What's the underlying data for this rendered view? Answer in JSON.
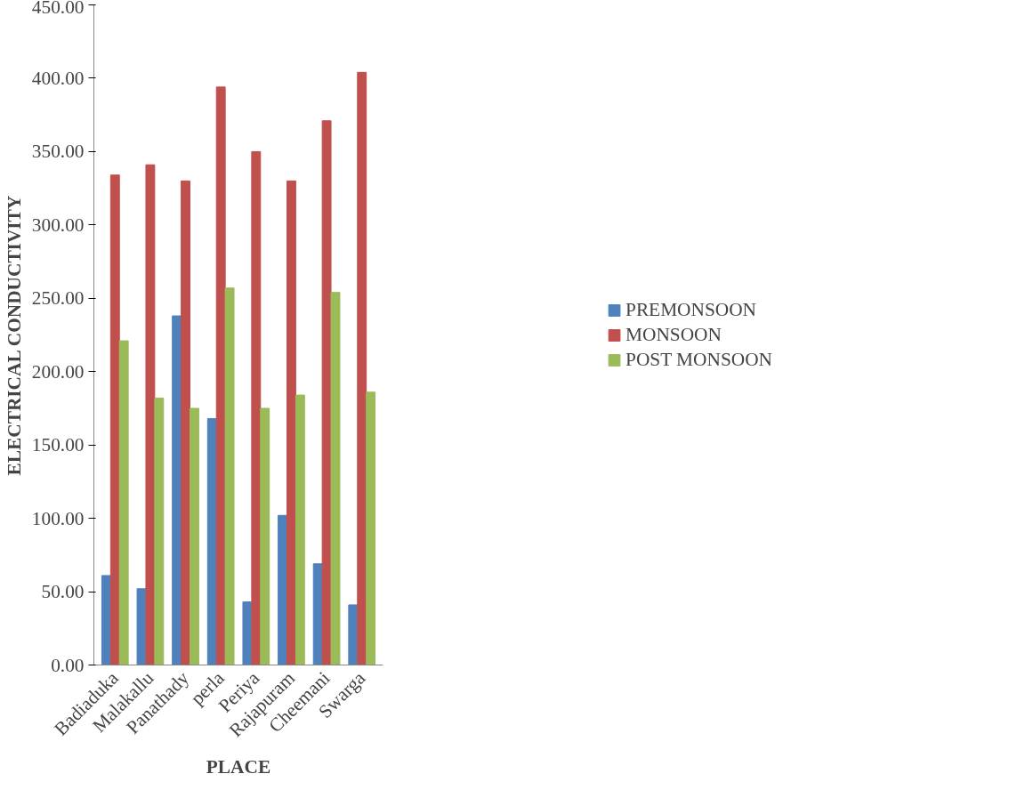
{
  "chart_data": {
    "type": "bar",
    "xlabel": "PLACE",
    "ylabel": "ELECTRICAL CONDUCTIVITY",
    "categories": [
      "Badiaduka",
      "Malakallu",
      "Panathady",
      "perla",
      "Periya",
      "Rajapuram",
      "Cheemani",
      "Swarga"
    ],
    "series": [
      {
        "name": "PREMONSOON",
        "color": "#4f81bd",
        "values": [
          61,
          52,
          238,
          168,
          43,
          102,
          69,
          41
        ]
      },
      {
        "name": "MONSOON",
        "color": "#c0504d",
        "values": [
          334,
          341,
          330,
          394,
          350,
          330,
          371,
          404
        ]
      },
      {
        "name": "POST MONSOON",
        "color": "#9bbb59",
        "values": [
          221,
          182,
          175,
          257,
          175,
          184,
          254,
          186
        ]
      }
    ],
    "ylim": [
      0,
      450
    ],
    "yticks": [
      {
        "value": 0,
        "label": "0.00"
      },
      {
        "value": 50,
        "label": "50.00"
      },
      {
        "value": 100,
        "label": "100.00"
      },
      {
        "value": 150,
        "label": "150.00"
      },
      {
        "value": 200,
        "label": "200.00"
      },
      {
        "value": 250,
        "label": "250.00"
      },
      {
        "value": 300,
        "label": "300.00"
      },
      {
        "value": 350,
        "label": "350.00"
      },
      {
        "value": 400,
        "label": "400.00"
      },
      {
        "value": 450,
        "label": "450.00"
      }
    ],
    "grid": false,
    "legend": "right"
  }
}
